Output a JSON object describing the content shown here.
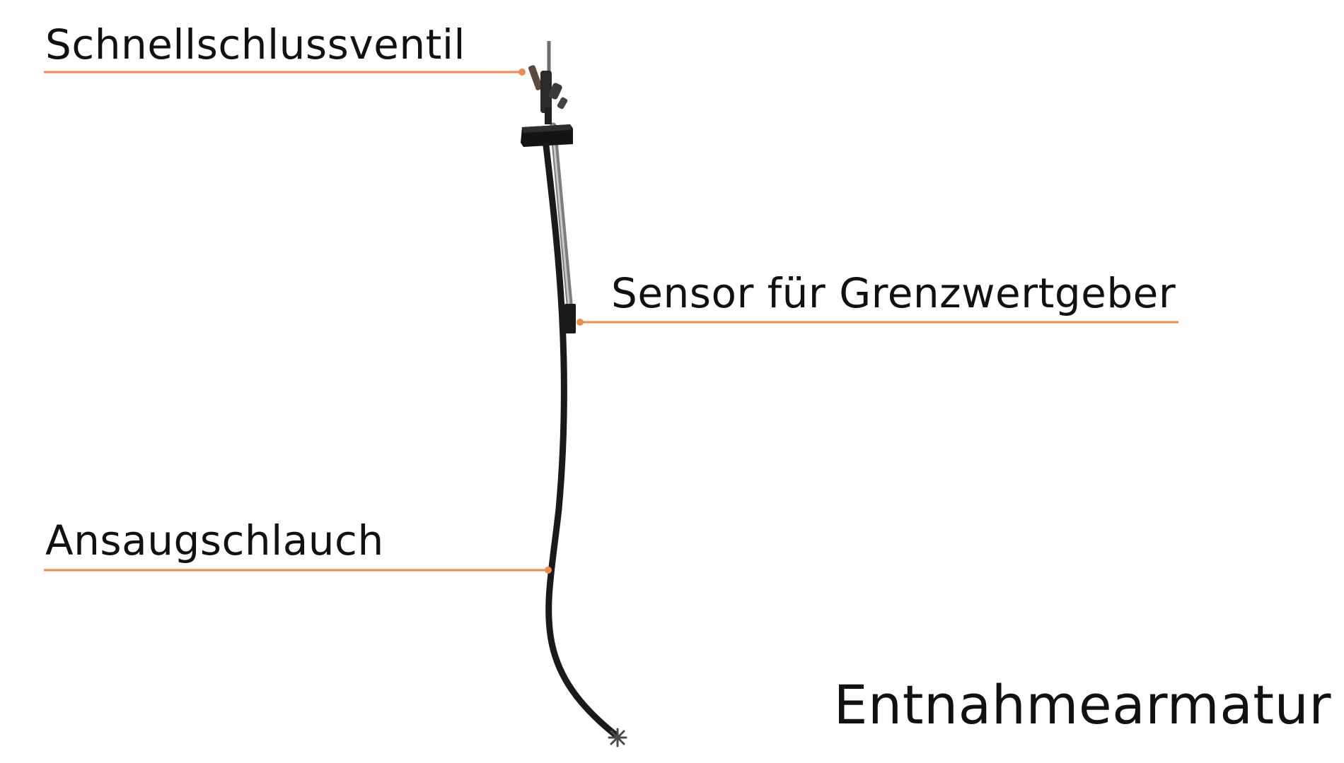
{
  "title": "Entnahmearmatur",
  "callouts": {
    "valve": "Schnellschlussventil",
    "sensor": "Sensor für Grenzwertgeber",
    "hose": "Ansaugschlauch"
  },
  "colors": {
    "leader": "#f08a4b",
    "hose": "#1a1a1a",
    "rod": "#8a8a8a",
    "fitting": "#141414",
    "text": "#111111"
  }
}
